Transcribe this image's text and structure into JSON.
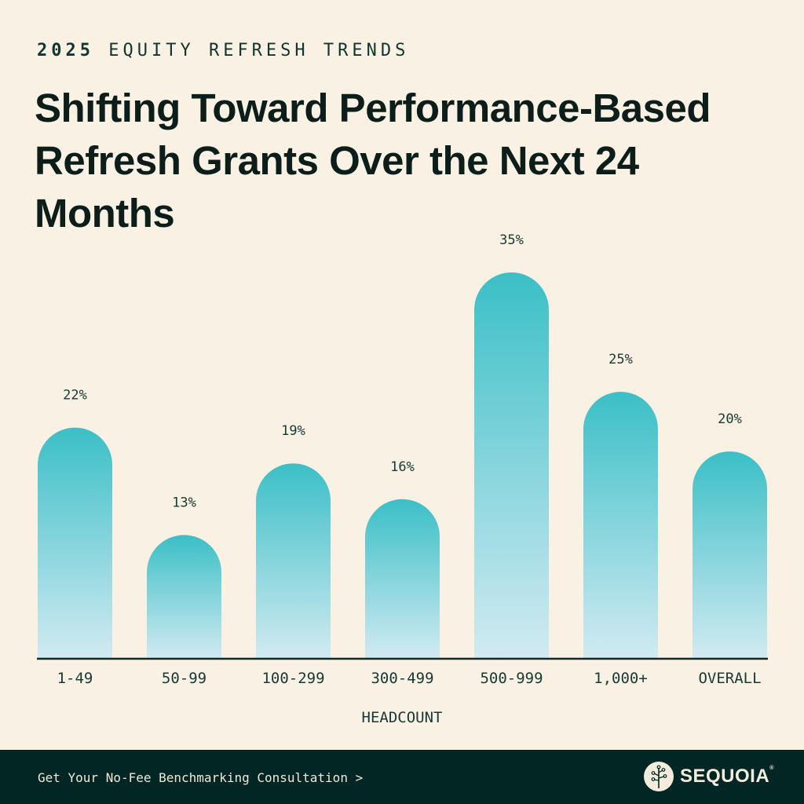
{
  "header": {
    "eyebrow_year": "2025",
    "eyebrow_text": "EQUITY REFRESH TRENDS",
    "title": "Shifting Toward Performance-Based Refresh Grants Over the Next 24 Months"
  },
  "chart_data": {
    "type": "bar",
    "title": "Shifting Toward Performance-Based Refresh Grants Over the Next 24 Months",
    "xlabel": "HEADCOUNT",
    "ylabel": "",
    "categories": [
      "1-49",
      "50-99",
      "100-299",
      "300-499",
      "500-999",
      "1,000+",
      "OVERALL"
    ],
    "values": [
      22,
      13,
      19,
      16,
      35,
      25,
      20
    ],
    "value_labels": [
      "22%",
      "13%",
      "19%",
      "16%",
      "35%",
      "25%",
      "20%"
    ],
    "ylim": [
      0,
      35
    ],
    "grid": false,
    "legend": "none",
    "colors": {
      "bar_top": "#3bbfc6",
      "bar_bottom": "#d2eaf2",
      "axis": "#0f2a26"
    }
  },
  "footer": {
    "cta": "Get Your No-Fee Benchmarking Consultation >",
    "brand": "SEQUOIA",
    "brand_mark": "®"
  }
}
